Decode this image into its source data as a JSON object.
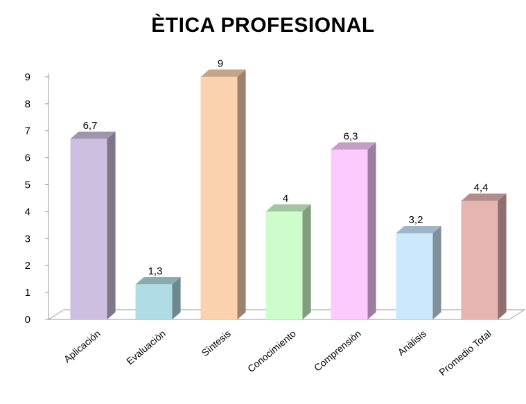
{
  "chart_data": {
    "type": "bar",
    "title": "ÈTICA PROFESIONAL",
    "categories": [
      "Aplicación",
      "Evaluaciòn",
      "Sìntesis",
      "Conocimiento",
      "Comprensiòn",
      "Anàlisis",
      "Promedio Total"
    ],
    "values": [
      6.7,
      1.3,
      9,
      4,
      6.3,
      3.2,
      4.4
    ],
    "value_labels": [
      "6,7",
      "1,3",
      "9",
      "4",
      "6,3",
      "3,2",
      "4,4"
    ],
    "y_ticks": [
      "0",
      "1",
      "2",
      "3",
      "4",
      "5",
      "6",
      "7",
      "8",
      "9"
    ],
    "ylim": [
      0,
      9
    ],
    "grid": false,
    "legend": "none",
    "style": "3d-column",
    "colors": [
      "#CDBFDF",
      "#B0DCE6",
      "#FCD2AE",
      "#CEFDCB",
      "#FDCAFD",
      "#CCE8FC",
      "#E6B5B2"
    ]
  }
}
